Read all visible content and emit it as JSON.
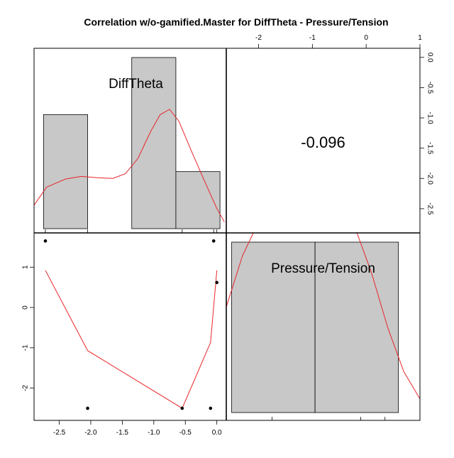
{
  "title": "Correlation w/o-gamified.Master for DiffTheta - Pressure/Tension",
  "chart_data": {
    "type": "scatter-matrix",
    "variables": [
      "DiffTheta",
      "Pressure/Tension"
    ],
    "correlation": {
      "value_text": "-0.096",
      "value": -0.096
    },
    "diag_histogram_difftheta": {
      "label": "DiffTheta",
      "breaks": [
        -2.75,
        -2.05,
        -1.35,
        -0.65,
        0.05
      ],
      "counts": [
        2,
        0,
        3,
        1
      ],
      "rug": [
        -2.72,
        -2.05,
        -0.55,
        -0.05,
        0.0
      ],
      "density": [
        [
          -2.95,
          0.35
        ],
        [
          -2.7,
          0.62
        ],
        [
          -2.4,
          0.74
        ],
        [
          -2.15,
          0.78
        ],
        [
          -1.9,
          0.76
        ],
        [
          -1.65,
          0.75
        ],
        [
          -1.45,
          0.82
        ],
        [
          -1.25,
          1.05
        ],
        [
          -1.05,
          1.45
        ],
        [
          -0.9,
          1.7
        ],
        [
          -0.75,
          1.78
        ],
        [
          -0.6,
          1.6
        ],
        [
          -0.4,
          1.15
        ],
        [
          -0.2,
          0.72
        ],
        [
          0.0,
          0.3
        ],
        [
          0.12,
          0.1
        ]
      ]
    },
    "diag_histogram_pressure": {
      "label": "Pressure/Tension",
      "breaks": [
        -2.5,
        -0.95,
        0.6
      ],
      "counts": [
        1,
        1
      ],
      "rug": [
        -1.75,
        -0.1,
        0.35
      ],
      "density": [
        [
          -3.2,
          0.4
        ],
        [
          -2.9,
          0.9
        ],
        [
          -2.6,
          1.55
        ],
        [
          -2.3,
          2.3
        ],
        [
          -2.0,
          2.8
        ],
        [
          -1.7,
          2.95
        ],
        [
          -1.4,
          2.9
        ],
        [
          -1.1,
          2.85
        ],
        [
          -0.8,
          2.9
        ],
        [
          -0.5,
          2.95
        ],
        [
          -0.2,
          2.7
        ],
        [
          0.1,
          2.05
        ],
        [
          0.4,
          1.25
        ],
        [
          0.7,
          0.6
        ],
        [
          1.0,
          0.2
        ],
        [
          1.2,
          0.05
        ]
      ]
    },
    "scatter": {
      "xlabel": "DiffTheta",
      "ylabel": "Pressure/Tension",
      "points": [
        [
          -2.72,
          1.65
        ],
        [
          -2.05,
          -2.5
        ],
        [
          -0.55,
          -2.5
        ],
        [
          -0.1,
          -2.5
        ],
        [
          -0.05,
          1.65
        ],
        [
          0.0,
          0.62
        ]
      ],
      "smooth": [
        [
          -2.72,
          0.92
        ],
        [
          -2.05,
          -1.07
        ],
        [
          -0.55,
          -2.5
        ],
        [
          -0.1,
          -0.87
        ],
        [
          0.0,
          0.92
        ]
      ]
    },
    "axes": {
      "bottom": {
        "range": [
          -2.9,
          0.15
        ],
        "ticks": [
          -2.5,
          -2.0,
          -1.5,
          -1.0,
          -0.5,
          0.0
        ],
        "labels": [
          "-2.5",
          "-2.0",
          "-1.5",
          "-1.0",
          "-0.5",
          "0.0"
        ]
      },
      "left": {
        "range": [
          -2.8,
          1.85
        ],
        "ticks": [
          -2,
          -1,
          0,
          1
        ],
        "labels": [
          "-2",
          "-1",
          "0",
          "1"
        ]
      },
      "top": {
        "range": [
          -2.6,
          1.0
        ],
        "ticks": [
          -2,
          -1,
          0,
          1
        ],
        "labels": [
          "-2",
          "-1",
          "0",
          "1"
        ]
      },
      "right": {
        "range": [
          -2.9,
          0.15
        ],
        "ticks": [
          0.0,
          -0.5,
          -1.0,
          -1.5,
          -2.0,
          -2.5
        ],
        "labels": [
          "0.0",
          "-0.5",
          "-1.0",
          "-1.5",
          "-2.0",
          "-2.5"
        ]
      }
    },
    "colors": {
      "bar_fill": "#c8c8c8",
      "curve": "#e8262a",
      "frame": "#000000"
    }
  }
}
